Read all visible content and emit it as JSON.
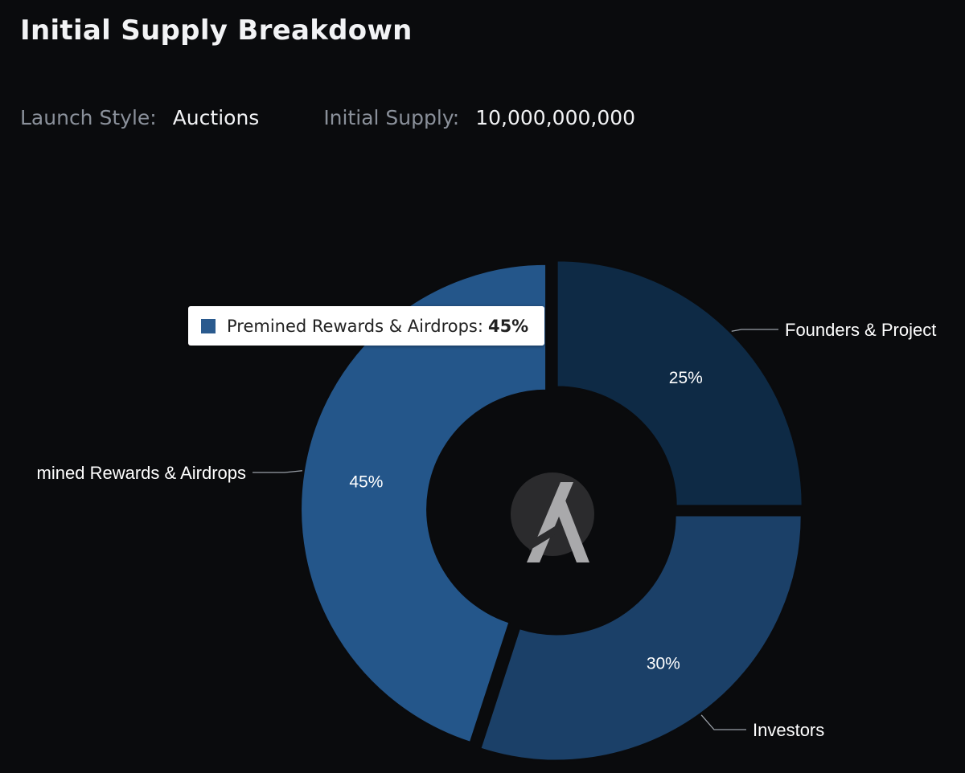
{
  "title": "Initial Supply Breakdown",
  "meta": {
    "launch_style_label": "Launch Style:",
    "launch_style_value": "Auctions",
    "initial_supply_label": "Initial Supply:",
    "initial_supply_value": "10,000,000,000"
  },
  "tooltip": {
    "label": "Premined Rewards & Airdrops:",
    "value": "45%",
    "color": "#2a5a8e"
  },
  "center_icon": "algorand-logo-icon",
  "colors": {
    "background": "#0a0b0d",
    "connector": "#9aa0a8"
  },
  "chart_data": {
    "type": "pie",
    "variant": "donut",
    "slices": [
      {
        "label": "Founders & Project",
        "value": 25,
        "display": "25%",
        "color": "#0e2a45"
      },
      {
        "label": "Investors",
        "value": 30,
        "display": "30%",
        "color": "#1b4068"
      },
      {
        "label": "mined Rewards & Airdrops",
        "value": 45,
        "display": "45%",
        "color": "#24568a"
      }
    ]
  }
}
